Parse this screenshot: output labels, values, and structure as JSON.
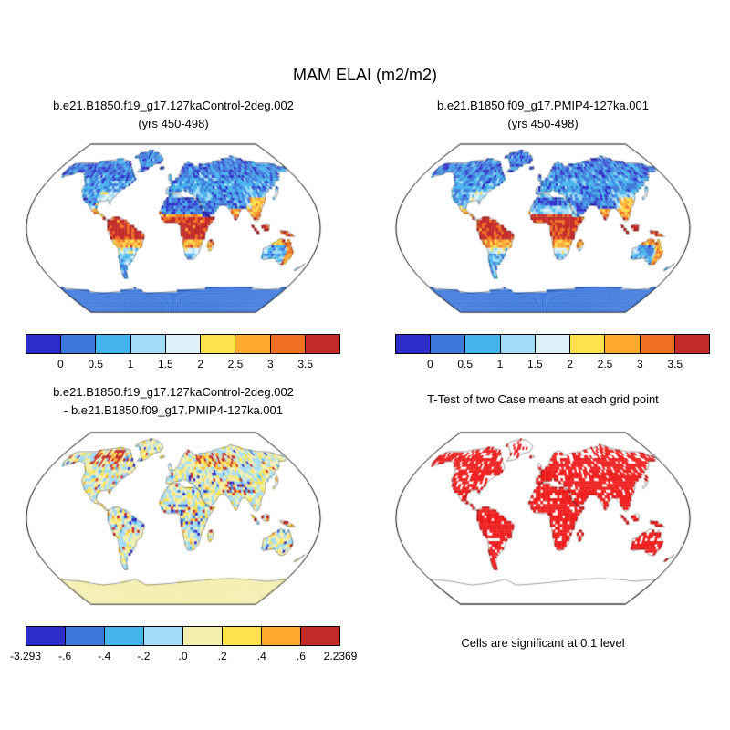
{
  "title": "MAM ELAI (m2/m2)",
  "panels": {
    "top_left": {
      "title_line1": "b.e21.B1850.f19_g17.127kaControl-2deg.002",
      "title_line2": "(yrs 450-498)"
    },
    "top_right": {
      "title_line1": "b.e21.B1850.f09_g17.PMIP4-127ka.001",
      "title_line2": "(yrs 450-498)"
    },
    "bottom_left": {
      "title_line1": "b.e21.B1850.f19_g17.127kaControl-2deg.002",
      "title_line2": "- b.e21.B1850.f09_g17.PMIP4-127ka.001"
    },
    "bottom_right": {
      "title": "T-Test of two Case means at each grid point",
      "caption": "Cells are significant at 0.1 level"
    }
  },
  "chart_data": [
    {
      "type": "heatmap",
      "subtype": "global-map",
      "projection": "robinson",
      "variable": "MAM ELAI",
      "units": "m2/m2",
      "title": "b.e21.B1850.f19_g17.127kaControl-2deg.002 (yrs 450-498)",
      "colorbar": {
        "tick_labels": [
          "0",
          "0.5",
          "1",
          "1.5",
          "2",
          "2.5",
          "3",
          "3.5"
        ],
        "colors": [
          "#2c2cc8",
          "#3c78dc",
          "#46b4ec",
          "#a0dcf5",
          "#ddf1fa",
          "#ffe14b",
          "#ffaa2e",
          "#f07022",
          "#c22a28"
        ],
        "label_position": "internal"
      }
    },
    {
      "type": "heatmap",
      "subtype": "global-map",
      "projection": "robinson",
      "variable": "MAM ELAI",
      "units": "m2/m2",
      "title": "b.e21.B1850.f09_g17.PMIP4-127ka.001 (yrs 450-498)",
      "colorbar": {
        "tick_labels": [
          "0",
          "0.5",
          "1",
          "1.5",
          "2",
          "2.5",
          "3",
          "3.5"
        ],
        "colors": [
          "#2c2cc8",
          "#3c78dc",
          "#46b4ec",
          "#a0dcf5",
          "#ddf1fa",
          "#ffe14b",
          "#ffaa2e",
          "#f07022",
          "#c22a28"
        ],
        "label_position": "internal"
      }
    },
    {
      "type": "heatmap",
      "subtype": "global-map-difference",
      "projection": "robinson",
      "variable": "MAM ELAI difference",
      "units": "m2/m2",
      "title": "b.e21.B1850.f19_g17.127kaControl-2deg.002 - b.e21.B1850.f09_g17.PMIP4-127ka.001",
      "data_range": {
        "min": -3.293,
        "max": 2.2369
      },
      "colorbar": {
        "tick_labels": [
          "-3.293",
          "-.6",
          "-.4",
          "-.2",
          ".0",
          ".2",
          ".4",
          ".6",
          "2.2369"
        ],
        "colors": [
          "#2c2cc8",
          "#3c78dc",
          "#46b4ec",
          "#a0dcf5",
          "#f4efad",
          "#ffe14b",
          "#ffaa2e",
          "#c22a28"
        ],
        "label_position": "edges"
      }
    },
    {
      "type": "heatmap",
      "subtype": "significance-mask",
      "projection": "robinson",
      "title": "T-Test of two Case means at each grid point",
      "significant_color": "#ee1c1c",
      "significance_level": 0.1,
      "note": "Cells are significant at 0.1 level"
    }
  ]
}
